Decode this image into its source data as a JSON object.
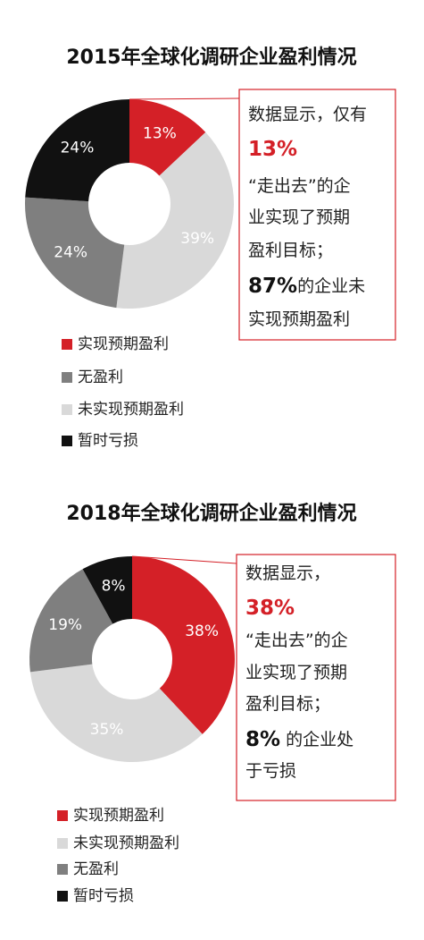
{
  "chart_data": [
    {
      "type": "pie",
      "title": "2015年全球化调研企业盈利情况",
      "values": [
        13,
        39,
        24,
        24
      ],
      "value_labels": [
        "13%",
        "39%",
        "24%",
        "24%"
      ],
      "colors": [
        "#d42027",
        "#d9d9d9",
        "#7f7f7f",
        "#111111"
      ],
      "legend": [
        {
          "name": "实现预期盈利",
          "color": "#d42027"
        },
        {
          "name": "无盈利",
          "color": "#7f7f7f"
        },
        {
          "name": "未实现预期盈利",
          "color": "#d9d9d9"
        },
        {
          "name": "暂时亏损",
          "color": "#111111"
        }
      ],
      "annotation": [
        [
          {
            "text": "数据显示，仅有",
            "style": "plain"
          }
        ],
        [
          {
            "text": "13%",
            "style": "red"
          }
        ],
        [
          {
            "text": "“走出去”的企",
            "style": "plain"
          }
        ],
        [
          {
            "text": "业实现了预期",
            "style": "plain"
          }
        ],
        [
          {
            "text": "盈利目标；",
            "style": "plain"
          }
        ],
        [
          {
            "text": "87%",
            "style": "bold"
          },
          {
            "text": "的企业未",
            "style": "plain"
          }
        ],
        [
          {
            "text": "实现预期盈利",
            "style": "plain"
          }
        ]
      ]
    },
    {
      "type": "pie",
      "title": "2018年全球化调研企业盈利情况",
      "values": [
        38,
        35,
        19,
        8
      ],
      "value_labels": [
        "38%",
        "35%",
        "19%",
        "8%"
      ],
      "colors": [
        "#d42027",
        "#d9d9d9",
        "#7f7f7f",
        "#111111"
      ],
      "legend": [
        {
          "name": "实现预期盈利",
          "color": "#d42027"
        },
        {
          "name": "未实现预期盈利",
          "color": "#d9d9d9"
        },
        {
          "name": "无盈利",
          "color": "#7f7f7f"
        },
        {
          "name": "暂时亏损",
          "color": "#111111"
        }
      ],
      "annotation": [
        [
          {
            "text": "数据显示，",
            "style": "plain"
          }
        ],
        [
          {
            "text": "38%",
            "style": "red"
          }
        ],
        [
          {
            "text": "“走出去”的企",
            "style": "plain"
          }
        ],
        [
          {
            "text": "业实现了预期",
            "style": "plain"
          }
        ],
        [
          {
            "text": "盈利目标；",
            "style": "plain"
          }
        ],
        [
          {
            "text": "8%",
            "style": "bold"
          },
          {
            "text": " 的企业处",
            "style": "plain"
          }
        ],
        [
          {
            "text": "于亏损",
            "style": "plain"
          }
        ]
      ]
    }
  ]
}
